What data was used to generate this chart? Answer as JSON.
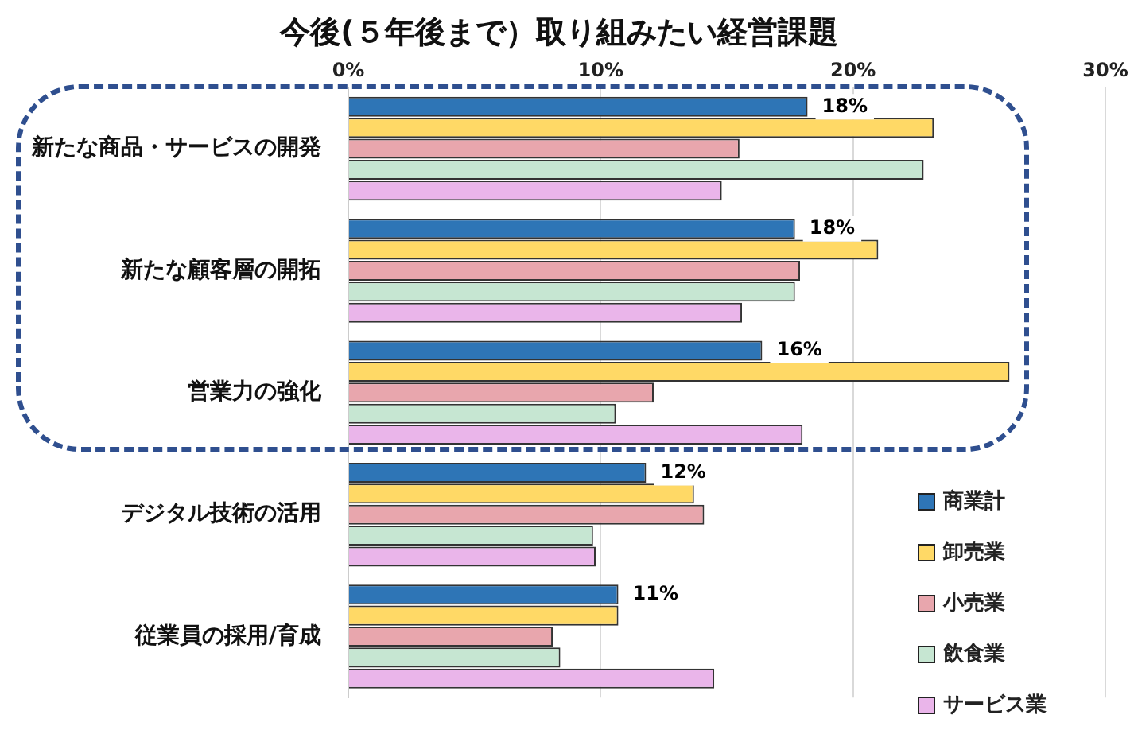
{
  "chart_data": {
    "type": "bar",
    "orientation": "horizontal",
    "title": "今後(５年後まで）取り組みたい経営課題",
    "categories": [
      "新たな商品・サービスの開発",
      "新たな顧客層の開拓",
      "営業力の強化",
      "デジタル技術の活用",
      "従業員の採用/育成"
    ],
    "series": [
      {
        "name": "商業計",
        "color": "#2e75b6",
        "values": [
          18.2,
          17.7,
          16.4,
          11.8,
          10.7
        ],
        "value_labels": [
          "18%",
          "18%",
          "16%",
          "12%",
          "11%"
        ]
      },
      {
        "name": "卸売業",
        "color": "#ffd966",
        "values": [
          23.2,
          21.0,
          26.2,
          13.7,
          10.7
        ]
      },
      {
        "name": "小売業",
        "color": "#e8a6ad",
        "values": [
          15.5,
          17.9,
          12.1,
          14.1,
          8.1
        ]
      },
      {
        "name": "飲食業",
        "color": "#c6e6d2",
        "values": [
          22.8,
          17.7,
          10.6,
          9.7,
          8.4
        ]
      },
      {
        "name": "サービス業",
        "color": "#eab5ea",
        "values": [
          14.8,
          15.6,
          18.0,
          9.8,
          14.5
        ]
      }
    ],
    "xlim": [
      0,
      30
    ],
    "xticks": [
      {
        "value": 0,
        "label": "0%"
      },
      {
        "value": 10,
        "label": "10%"
      },
      {
        "value": 20,
        "label": "20%"
      },
      {
        "value": 30,
        "label": "30%"
      }
    ],
    "grid": "x",
    "legend": "bottom right"
  }
}
